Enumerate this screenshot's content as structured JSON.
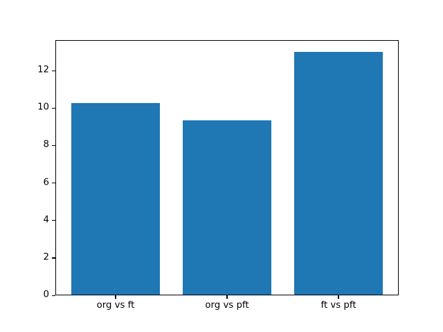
{
  "figure": {
    "background": "#ffffff",
    "text_color": "#000000",
    "spine_color": "#000000"
  },
  "chart_data": {
    "type": "bar",
    "title": "",
    "xlabel": "",
    "ylabel": "",
    "categories": [
      "org vs ft",
      "org vs pft",
      "ft vs pft"
    ],
    "values": [
      10.27,
      9.33,
      13.0
    ],
    "bar_color": "#1f77b4",
    "bar_width_fraction": 0.8,
    "ylim": [
      0,
      13.65
    ],
    "yticks": [
      0,
      2,
      4,
      6,
      8,
      10,
      12
    ],
    "grid": false,
    "legend": null
  }
}
